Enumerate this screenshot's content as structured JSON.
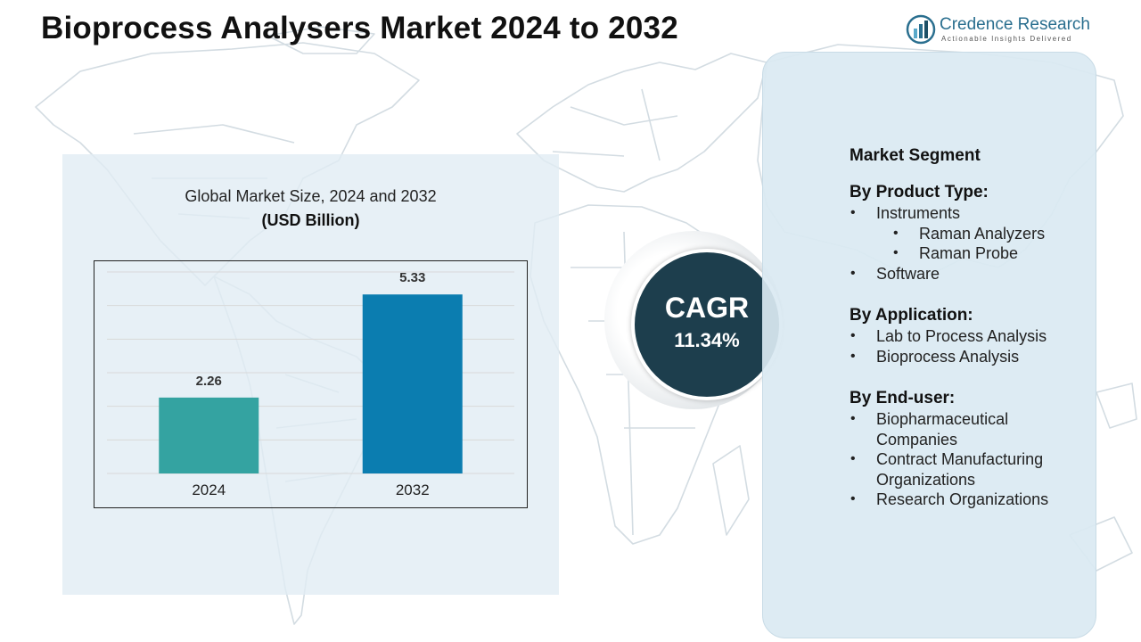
{
  "header": {
    "title": "Bioprocess Analysers Market 2024 to 2032"
  },
  "logo": {
    "name": "Credence Research",
    "tagline": "Actionable Insights Delivered",
    "icon": "bar-chart-logo-icon",
    "color": "#2a6f8f"
  },
  "chart_data": {
    "type": "bar",
    "title": "Global Market Size, 2024 and 2032",
    "subtitle": "(USD Billion)",
    "categories": [
      "2024",
      "2032"
    ],
    "values": [
      2.26,
      5.33
    ],
    "data_labels": [
      "2.26",
      "5.33"
    ],
    "colors": [
      "#34a3a1",
      "#0b7db0"
    ],
    "ylim": [
      0,
      6
    ],
    "grid": true,
    "xlabel": "",
    "ylabel": ""
  },
  "cagr": {
    "label": "CAGR",
    "value": "11.34%",
    "color": "#1d3e4d"
  },
  "segments": {
    "heading": "Market Segment",
    "product_type": {
      "title": "By Product Type:",
      "items": [
        "Instruments",
        "Software"
      ],
      "instrument_subitems": [
        "Raman Analyzers",
        "Raman Probe"
      ]
    },
    "application": {
      "title": "By Application:",
      "items": [
        "Lab to Process Analysis",
        "Bioprocess Analysis"
      ]
    },
    "end_user": {
      "title": "By End-user:",
      "items": [
        "Biopharmaceutical Companies",
        "Contract Manufacturing Organizations",
        "Research Organizations"
      ]
    }
  }
}
